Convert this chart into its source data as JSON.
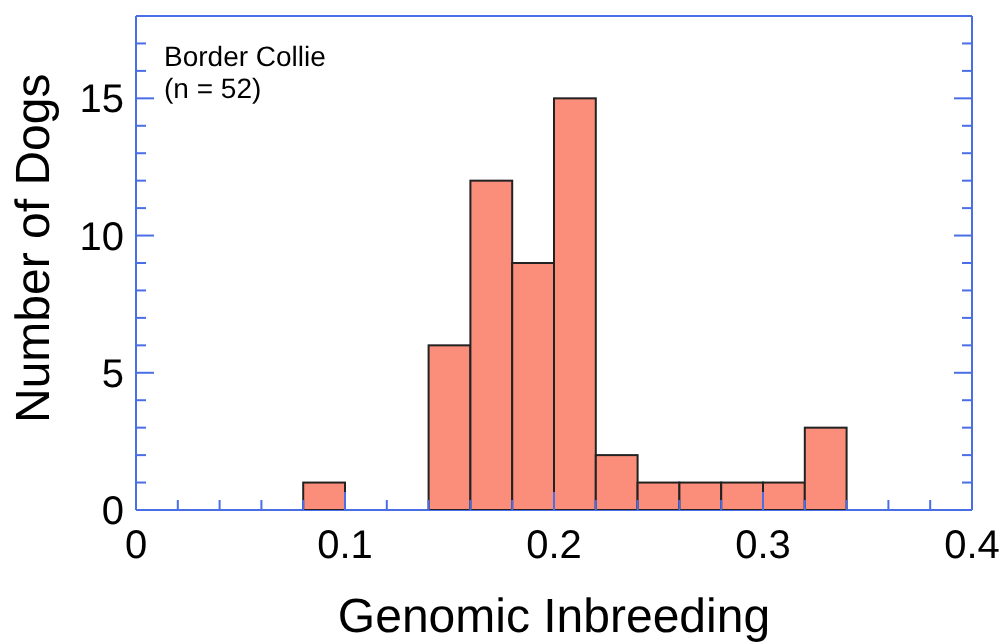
{
  "chart_data": {
    "type": "histogram",
    "xlabel": "Genomic Inbreeding",
    "ylabel": "Number of Dogs",
    "annotations": [
      "Border Collie\n(n = 52)"
    ],
    "bins": [
      0.08,
      0.1,
      0.12,
      0.14,
      0.16,
      0.18,
      0.2,
      0.22,
      0.24,
      0.26,
      0.28,
      0.3,
      0.32,
      0.34
    ],
    "values": [
      1,
      0,
      0,
      6,
      12,
      9,
      15,
      2,
      1,
      1,
      1,
      1,
      3
    ],
    "color": "#fa8e7b",
    "xlim": [
      0,
      0.4
    ],
    "xticks": [
      0,
      {
        "value": 0.02,
        "label": null
      },
      {
        "value": 0.04,
        "label": null
      },
      {
        "value": 0.06,
        "label": null
      },
      {
        "value": 0.08,
        "label": null
      },
      0.1,
      {
        "value": 0.12,
        "label": null
      },
      {
        "value": 0.14,
        "label": null
      },
      {
        "value": 0.16,
        "label": null
      },
      {
        "value": 0.18,
        "label": null
      },
      0.2,
      {
        "value": 0.22,
        "label": null
      },
      {
        "value": 0.24,
        "label": null
      },
      {
        "value": 0.26,
        "label": null
      },
      {
        "value": 0.28,
        "label": null
      },
      0.3,
      {
        "value": 0.32,
        "label": null
      },
      {
        "value": 0.34,
        "label": null
      },
      {
        "value": 0.36,
        "label": null
      },
      {
        "value": 0.38,
        "label": null
      },
      0.4
    ],
    "ylim": [
      0,
      18
    ],
    "yticks": [
      0,
      {
        "value": 1,
        "label": null
      },
      {
        "value": 2,
        "label": null
      },
      {
        "value": 3,
        "label": null
      },
      {
        "value": 4,
        "label": null
      },
      5,
      {
        "value": 6,
        "label": null
      },
      {
        "value": 7,
        "label": null
      },
      {
        "value": 8,
        "label": null
      },
      {
        "value": 9,
        "label": null
      },
      10,
      {
        "value": 11,
        "label": null
      },
      {
        "value": 12,
        "label": null
      },
      {
        "value": 13,
        "label": null
      },
      {
        "value": 14,
        "label": null
      },
      15,
      {
        "value": 16,
        "label": null
      },
      {
        "value": 17,
        "label": null
      },
      {
        "value": 18,
        "label": null
      }
    ]
  }
}
